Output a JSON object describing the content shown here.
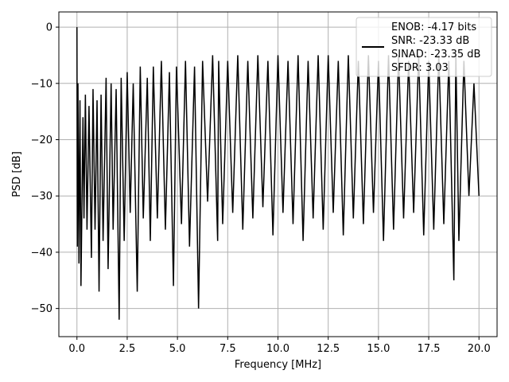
{
  "chart_data": {
    "type": "line",
    "xlabel": "Frequency [MHz]",
    "ylabel": "PSD [dB]",
    "xlim": [
      -0.9,
      20.9
    ],
    "ylim": [
      -55,
      2.7
    ],
    "xticks": [
      0.0,
      2.5,
      5.0,
      7.5,
      10.0,
      12.5,
      15.0,
      17.5,
      20.0
    ],
    "xtick_labels": [
      "0.0",
      "2.5",
      "5.0",
      "7.5",
      "10.0",
      "12.5",
      "15.0",
      "17.5",
      "20.0"
    ],
    "yticks": [
      0,
      -10,
      -20,
      -30,
      -40,
      -50
    ],
    "ytick_labels": [
      "0",
      "−10",
      "−20",
      "−30",
      "−40",
      "−50"
    ],
    "grid": true,
    "legend_position": "top-right",
    "legend": [
      "ENOB: -4.17 bits",
      "SNR: -23.33 dB",
      "SINAD: -23.35 dB",
      "SFDR: 3.03"
    ],
    "series": [
      {
        "color": "#000000",
        "x": [
          0.0,
          0.02,
          0.05,
          0.1,
          0.15,
          0.2,
          0.3,
          0.35,
          0.42,
          0.5,
          0.6,
          0.72,
          0.8,
          0.9,
          1.0,
          1.1,
          1.2,
          1.3,
          1.45,
          1.55,
          1.7,
          1.8,
          1.95,
          2.1,
          2.2,
          2.35,
          2.5,
          2.65,
          2.8,
          3.0,
          3.15,
          3.3,
          3.5,
          3.65,
          3.8,
          4.0,
          4.2,
          4.4,
          4.6,
          4.8,
          4.95,
          5.2,
          5.4,
          5.6,
          5.85,
          6.05,
          6.25,
          6.5,
          6.75,
          7.0,
          7.05,
          7.25,
          7.5,
          7.75,
          8.0,
          8.25,
          8.5,
          8.75,
          9.0,
          9.25,
          9.5,
          9.75,
          10.0,
          10.25,
          10.5,
          10.75,
          11.0,
          11.25,
          11.5,
          11.75,
          12.0,
          12.25,
          12.5,
          12.75,
          13.0,
          13.25,
          13.5,
          13.75,
          14.0,
          14.25,
          14.5,
          14.75,
          15.0,
          15.25,
          15.5,
          15.75,
          16.0,
          16.25,
          16.5,
          16.75,
          17.0,
          17.25,
          17.5,
          17.75,
          18.0,
          18.25,
          18.5,
          18.75,
          18.85,
          19.0,
          19.25,
          19.5,
          19.75,
          20.0
        ],
        "y": [
          0.0,
          -39,
          -10,
          -42,
          -13,
          -46,
          -16,
          -34,
          -12,
          -36,
          -14,
          -41,
          -11,
          -36,
          -13,
          -47,
          -12,
          -38,
          -9,
          -43,
          -10,
          -36,
          -11,
          -52,
          -9,
          -38,
          -8,
          -33,
          -10,
          -47,
          -7,
          -34,
          -9,
          -38,
          -7,
          -34,
          -6,
          -36,
          -8,
          -46,
          -7,
          -35,
          -6,
          -39,
          -7,
          -50,
          -6,
          -31,
          -5,
          -38,
          -6,
          -35,
          -6,
          -33,
          -5,
          -36,
          -6,
          -34,
          -5,
          -32,
          -6,
          -37,
          -5,
          -33,
          -6,
          -35,
          -5,
          -38,
          -6,
          -34,
          -5,
          -36,
          -5,
          -33,
          -6,
          -37,
          -5,
          -34,
          -6,
          -35,
          -5,
          -33,
          -6,
          -38,
          -5,
          -36,
          -5,
          -34,
          -6,
          -33,
          -5,
          -37,
          -6,
          -36,
          -5,
          -35,
          -6,
          -45,
          -5,
          -38,
          -6,
          -30,
          -10,
          -30
        ]
      }
    ]
  }
}
